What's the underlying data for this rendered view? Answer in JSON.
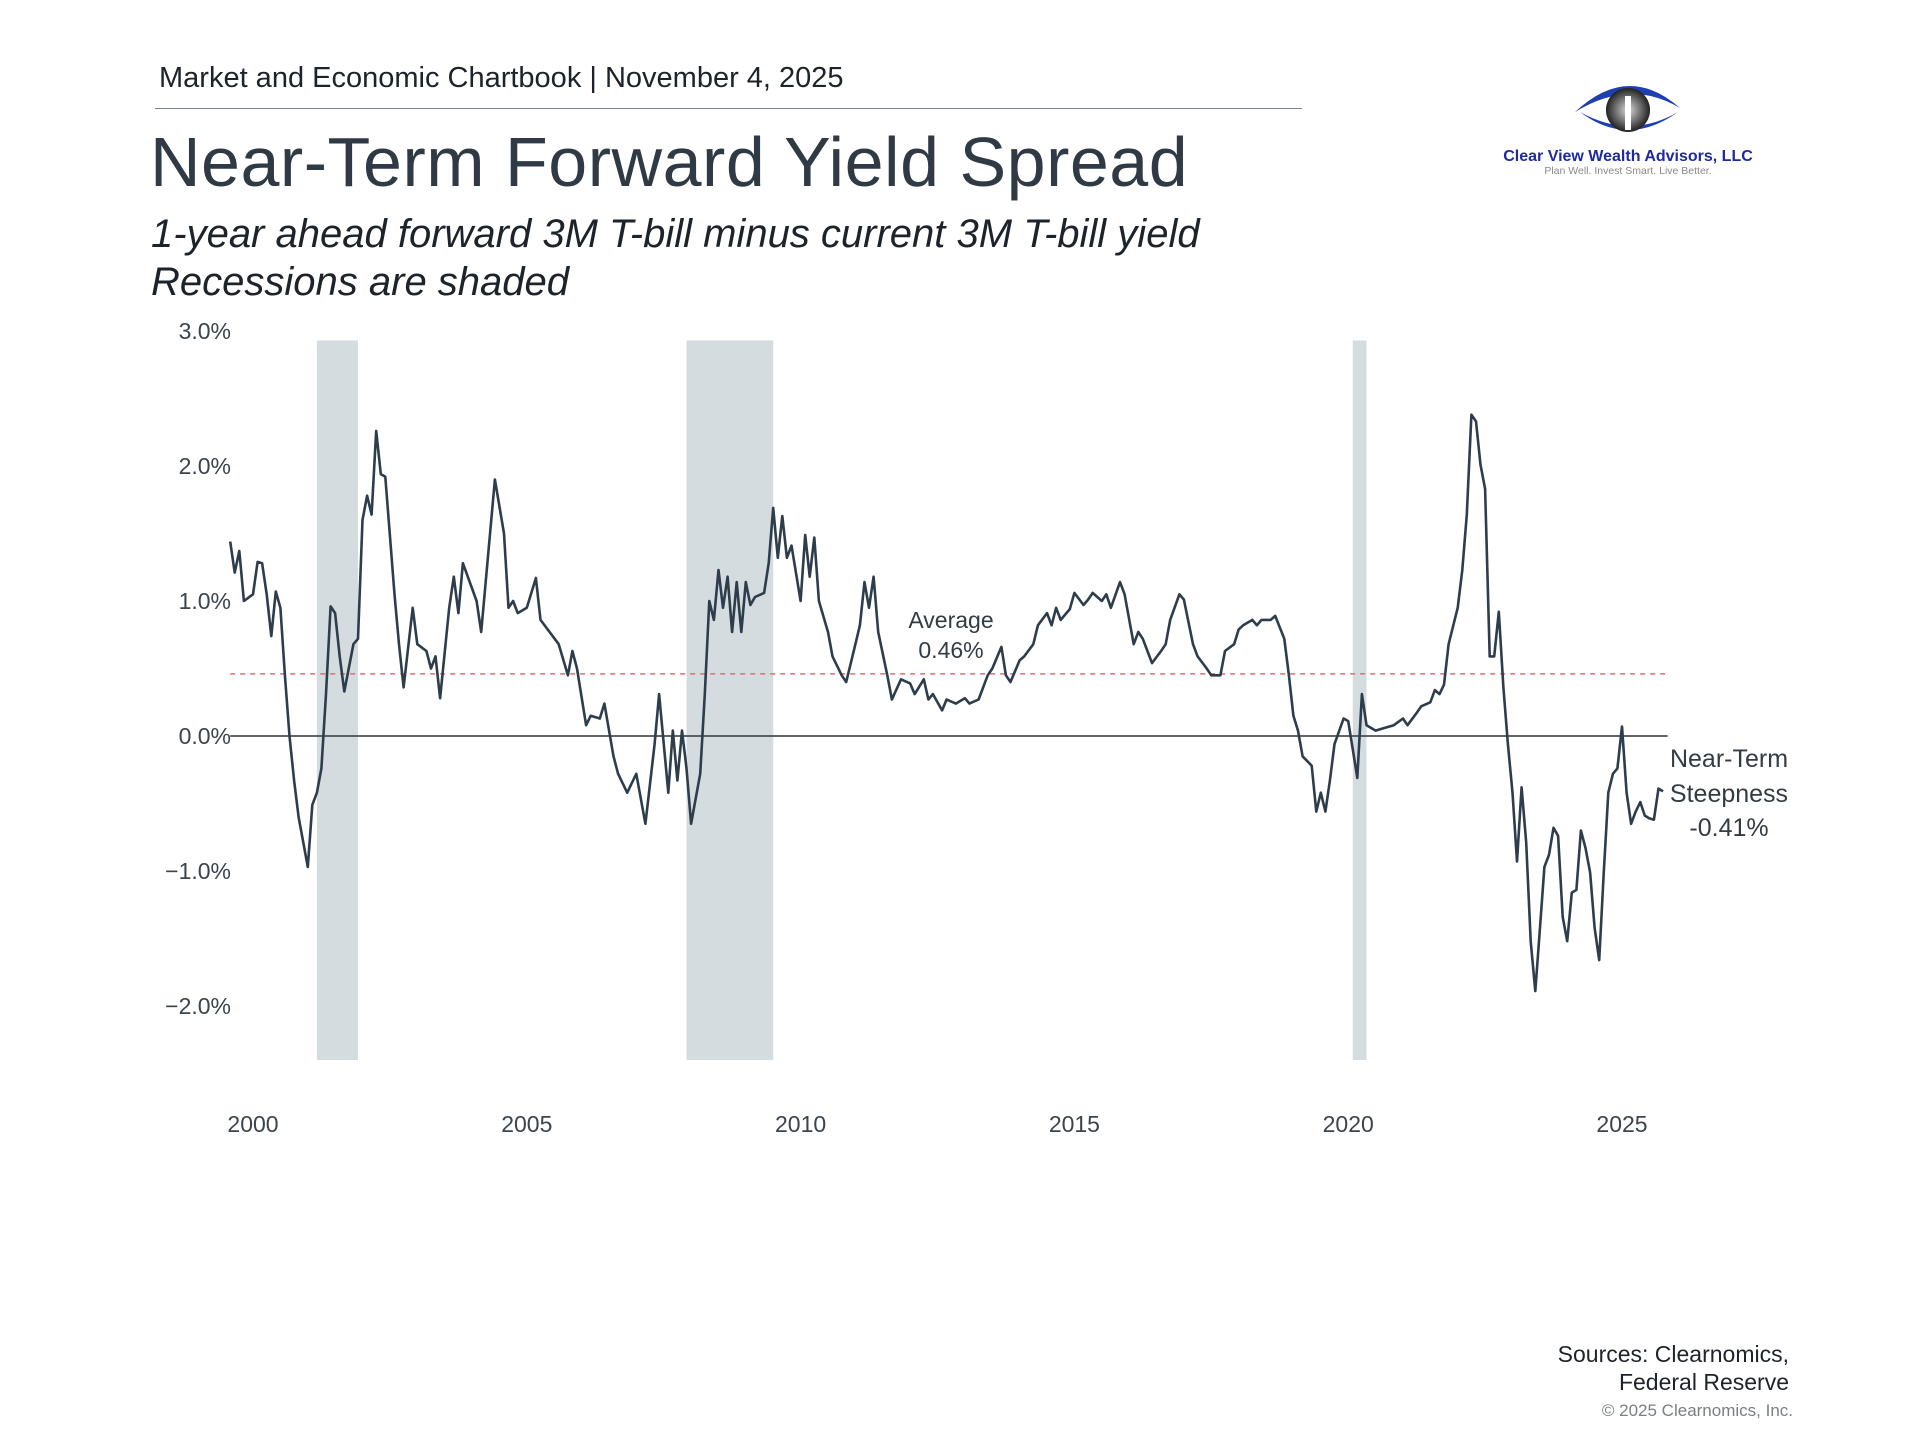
{
  "header": {
    "chartbook": "Market and Economic Chartbook | November 4, 2025",
    "title": "Near-Term Forward Yield Spread",
    "subtitle_1": "1-year ahead forward 3M T-bill minus current 3M T-bill yield",
    "subtitle_2": "Recessions are shaded"
  },
  "logo": {
    "name": "Clear View Wealth Advisors, LLC",
    "tagline": "Plan Well. Invest Smart. Live Better.",
    "color": "#1f2a9e"
  },
  "footer": {
    "sources_1": "Sources: Clearnomics,",
    "sources_2": "Federal Reserve",
    "copyright": "© 2025 Clearnomics, Inc."
  },
  "chart_data": {
    "type": "line",
    "title": "",
    "xlabel": "",
    "ylabel": "",
    "ylim": [
      -2.4,
      3.0
    ],
    "xlim": [
      "1999-08",
      "2025-10"
    ],
    "yticks": [
      {
        "value": 3,
        "label": "3.0%"
      },
      {
        "value": 2,
        "label": "2.0%"
      },
      {
        "value": 1,
        "label": "1.0%"
      },
      {
        "value": 0,
        "label": "0.0%"
      },
      {
        "value": -1,
        "label": "−1.0%"
      },
      {
        "value": -2,
        "label": "−2.0%"
      }
    ],
    "xticks": [
      {
        "value": 2000,
        "label": "2000"
      },
      {
        "value": 2005,
        "label": "2005"
      },
      {
        "value": 2010,
        "label": "2010"
      },
      {
        "value": 2015,
        "label": "2015"
      },
      {
        "value": 2020,
        "label": "2020"
      },
      {
        "value": 2025,
        "label": "2025"
      }
    ],
    "grid": false,
    "line_color": "#2e3d4b",
    "recession_color": "#d5dce0",
    "average_color": "#e06c75",
    "recessions": [
      [
        "2001-03",
        "2001-11"
      ],
      [
        "2007-12",
        "2009-06"
      ],
      [
        "2020-02",
        "2020-04"
      ]
    ],
    "average": {
      "value": 0.46,
      "label_1": "Average",
      "label_2": "0.46%"
    },
    "end_annotation": {
      "line_1": "Near-Term",
      "line_2": "Steepness",
      "line_3": "-0.41%"
    },
    "series": [
      {
        "points": [
          [
            "1999-08",
            1.44
          ],
          [
            "1999-09",
            1.21
          ],
          [
            "1999-10",
            1.37
          ],
          [
            "1999-11",
            1.0
          ],
          [
            "2000-01",
            1.05
          ],
          [
            "2000-02",
            1.29
          ],
          [
            "2000-03",
            1.28
          ],
          [
            "2000-04",
            1.05
          ],
          [
            "2000-05",
            0.74
          ],
          [
            "2000-06",
            1.07
          ],
          [
            "2000-07",
            0.95
          ],
          [
            "2000-08",
            0.45
          ],
          [
            "2000-09",
            0.0
          ],
          [
            "2000-10",
            -0.33
          ],
          [
            "2000-11",
            -0.6
          ],
          [
            "2001-01",
            -0.97
          ],
          [
            "2001-02",
            -0.51
          ],
          [
            "2001-03",
            -0.42
          ],
          [
            "2001-04",
            -0.24
          ],
          [
            "2001-05",
            0.31
          ],
          [
            "2001-06",
            0.96
          ],
          [
            "2001-07",
            0.91
          ],
          [
            "2001-08",
            0.59
          ],
          [
            "2001-09",
            0.33
          ],
          [
            "2001-11",
            0.68
          ],
          [
            "2001-12",
            0.72
          ],
          [
            "2002-01",
            1.6
          ],
          [
            "2002-02",
            1.78
          ],
          [
            "2002-03",
            1.64
          ],
          [
            "2002-04",
            2.26
          ],
          [
            "2002-05",
            1.94
          ],
          [
            "2002-06",
            1.92
          ],
          [
            "2002-08",
            1.05
          ],
          [
            "2002-09",
            0.68
          ],
          [
            "2002-10",
            0.36
          ],
          [
            "2002-12",
            0.95
          ],
          [
            "2003-01",
            0.68
          ],
          [
            "2003-03",
            0.63
          ],
          [
            "2003-04",
            0.5
          ],
          [
            "2003-05",
            0.59
          ],
          [
            "2003-06",
            0.28
          ],
          [
            "2003-08",
            0.95
          ],
          [
            "2003-09",
            1.18
          ],
          [
            "2003-10",
            0.91
          ],
          [
            "2003-11",
            1.28
          ],
          [
            "2004-02",
            1.0
          ],
          [
            "2004-03",
            0.77
          ],
          [
            "2004-06",
            1.9
          ],
          [
            "2004-08",
            1.5
          ],
          [
            "2004-09",
            0.95
          ],
          [
            "2004-10",
            1.0
          ],
          [
            "2004-11",
            0.91
          ],
          [
            "2005-01",
            0.95
          ],
          [
            "2005-03",
            1.17
          ],
          [
            "2005-04",
            0.86
          ],
          [
            "2005-06",
            0.77
          ],
          [
            "2005-08",
            0.68
          ],
          [
            "2005-10",
            0.45
          ],
          [
            "2005-11",
            0.63
          ],
          [
            "2005-12",
            0.5
          ],
          [
            "2006-02",
            0.08
          ],
          [
            "2006-03",
            0.15
          ],
          [
            "2006-05",
            0.13
          ],
          [
            "2006-06",
            0.24
          ],
          [
            "2006-08",
            -0.15
          ],
          [
            "2006-09",
            -0.28
          ],
          [
            "2006-11",
            -0.42
          ],
          [
            "2007-01",
            -0.28
          ],
          [
            "2007-03",
            -0.65
          ],
          [
            "2007-05",
            -0.06
          ],
          [
            "2007-06",
            0.31
          ],
          [
            "2007-08",
            -0.42
          ],
          [
            "2007-09",
            0.04
          ],
          [
            "2007-10",
            -0.33
          ],
          [
            "2007-11",
            0.04
          ],
          [
            "2007-12",
            -0.24
          ],
          [
            "2008-01",
            -0.65
          ],
          [
            "2008-03",
            -0.28
          ],
          [
            "2008-04",
            0.31
          ],
          [
            "2008-05",
            1.0
          ],
          [
            "2008-06",
            0.86
          ],
          [
            "2008-07",
            1.23
          ],
          [
            "2008-08",
            0.95
          ],
          [
            "2008-09",
            1.18
          ],
          [
            "2008-10",
            0.77
          ],
          [
            "2008-11",
            1.14
          ],
          [
            "2008-12",
            0.77
          ],
          [
            "2009-01",
            1.14
          ],
          [
            "2009-02",
            0.97
          ],
          [
            "2009-03",
            1.03
          ],
          [
            "2009-05",
            1.06
          ],
          [
            "2009-06",
            1.28
          ],
          [
            "2009-07",
            1.69
          ],
          [
            "2009-08",
            1.32
          ],
          [
            "2009-09",
            1.63
          ],
          [
            "2009-10",
            1.32
          ],
          [
            "2009-11",
            1.41
          ],
          [
            "2010-01",
            1.0
          ],
          [
            "2010-02",
            1.49
          ],
          [
            "2010-03",
            1.18
          ],
          [
            "2010-04",
            1.47
          ],
          [
            "2010-05",
            1.0
          ],
          [
            "2010-07",
            0.77
          ],
          [
            "2010-08",
            0.59
          ],
          [
            "2010-10",
            0.45
          ],
          [
            "2010-11",
            0.4
          ],
          [
            "2011-01",
            0.68
          ],
          [
            "2011-02",
            0.82
          ],
          [
            "2011-03",
            1.14
          ],
          [
            "2011-04",
            0.95
          ],
          [
            "2011-05",
            1.18
          ],
          [
            "2011-06",
            0.77
          ],
          [
            "2011-08",
            0.45
          ],
          [
            "2011-09",
            0.27
          ],
          [
            "2011-11",
            0.42
          ],
          [
            "2012-01",
            0.39
          ],
          [
            "2012-02",
            0.31
          ],
          [
            "2012-04",
            0.42
          ],
          [
            "2012-05",
            0.27
          ],
          [
            "2012-06",
            0.31
          ],
          [
            "2012-08",
            0.19
          ],
          [
            "2012-09",
            0.27
          ],
          [
            "2012-11",
            0.24
          ],
          [
            "2013-01",
            0.28
          ],
          [
            "2013-02",
            0.24
          ],
          [
            "2013-04",
            0.27
          ],
          [
            "2013-06",
            0.45
          ],
          [
            "2013-07",
            0.5
          ],
          [
            "2013-09",
            0.66
          ],
          [
            "2013-10",
            0.45
          ],
          [
            "2013-11",
            0.4
          ],
          [
            "2014-01",
            0.56
          ],
          [
            "2014-02",
            0.59
          ],
          [
            "2014-04",
            0.68
          ],
          [
            "2014-05",
            0.82
          ],
          [
            "2014-07",
            0.91
          ],
          [
            "2014-08",
            0.82
          ],
          [
            "2014-09",
            0.95
          ],
          [
            "2014-10",
            0.86
          ],
          [
            "2014-12",
            0.94
          ],
          [
            "2015-01",
            1.06
          ],
          [
            "2015-03",
            0.97
          ],
          [
            "2015-04",
            1.01
          ],
          [
            "2015-05",
            1.06
          ],
          [
            "2015-07",
            1.0
          ],
          [
            "2015-08",
            1.05
          ],
          [
            "2015-09",
            0.95
          ],
          [
            "2015-11",
            1.14
          ],
          [
            "2015-12",
            1.05
          ],
          [
            "2016-02",
            0.68
          ],
          [
            "2016-03",
            0.77
          ],
          [
            "2016-04",
            0.72
          ],
          [
            "2016-06",
            0.54
          ],
          [
            "2016-08",
            0.63
          ],
          [
            "2016-09",
            0.68
          ],
          [
            "2016-10",
            0.86
          ],
          [
            "2016-12",
            1.05
          ],
          [
            "2017-01",
            1.01
          ],
          [
            "2017-03",
            0.68
          ],
          [
            "2017-04",
            0.59
          ],
          [
            "2017-06",
            0.5
          ],
          [
            "2017-07",
            0.45
          ],
          [
            "2017-09",
            0.45
          ],
          [
            "2017-10",
            0.63
          ],
          [
            "2017-12",
            0.68
          ],
          [
            "2018-01",
            0.79
          ],
          [
            "2018-02",
            0.82
          ],
          [
            "2018-04",
            0.86
          ],
          [
            "2018-05",
            0.82
          ],
          [
            "2018-06",
            0.86
          ],
          [
            "2018-08",
            0.86
          ],
          [
            "2018-09",
            0.89
          ],
          [
            "2018-11",
            0.72
          ],
          [
            "2018-12",
            0.45
          ],
          [
            "2019-01",
            0.15
          ],
          [
            "2019-02",
            0.04
          ],
          [
            "2019-03",
            -0.15
          ],
          [
            "2019-05",
            -0.22
          ],
          [
            "2019-06",
            -0.56
          ],
          [
            "2019-07",
            -0.42
          ],
          [
            "2019-08",
            -0.56
          ],
          [
            "2019-09",
            -0.33
          ],
          [
            "2019-10",
            -0.06
          ],
          [
            "2019-12",
            0.13
          ],
          [
            "2020-01",
            0.11
          ],
          [
            "2020-02",
            -0.1
          ],
          [
            "2020-03",
            -0.31
          ],
          [
            "2020-04",
            0.31
          ],
          [
            "2020-05",
            0.08
          ],
          [
            "2020-07",
            0.04
          ],
          [
            "2020-09",
            0.06
          ],
          [
            "2020-11",
            0.08
          ],
          [
            "2021-01",
            0.13
          ],
          [
            "2021-02",
            0.08
          ],
          [
            "2021-04",
            0.17
          ],
          [
            "2021-05",
            0.22
          ],
          [
            "2021-07",
            0.25
          ],
          [
            "2021-08",
            0.34
          ],
          [
            "2021-09",
            0.31
          ],
          [
            "2021-10",
            0.38
          ],
          [
            "2021-11",
            0.68
          ],
          [
            "2022-01",
            0.95
          ],
          [
            "2022-02",
            1.23
          ],
          [
            "2022-03",
            1.64
          ],
          [
            "2022-04",
            2.38
          ],
          [
            "2022-05",
            2.33
          ],
          [
            "2022-06",
            2.01
          ],
          [
            "2022-07",
            1.83
          ],
          [
            "2022-08",
            0.59
          ],
          [
            "2022-09",
            0.59
          ],
          [
            "2022-10",
            0.92
          ],
          [
            "2022-11",
            0.36
          ],
          [
            "2022-12",
            -0.06
          ],
          [
            "2023-01",
            -0.42
          ],
          [
            "2023-02",
            -0.93
          ],
          [
            "2023-03",
            -0.38
          ],
          [
            "2023-04",
            -0.79
          ],
          [
            "2023-05",
            -1.52
          ],
          [
            "2023-06",
            -1.89
          ],
          [
            "2023-07",
            -1.43
          ],
          [
            "2023-08",
            -0.97
          ],
          [
            "2023-09",
            -0.88
          ],
          [
            "2023-10",
            -0.68
          ],
          [
            "2023-11",
            -0.74
          ],
          [
            "2023-12",
            -1.34
          ],
          [
            "2024-01",
            -1.52
          ],
          [
            "2024-02",
            -1.16
          ],
          [
            "2024-03",
            -1.14
          ],
          [
            "2024-04",
            -0.7
          ],
          [
            "2024-05",
            -0.83
          ],
          [
            "2024-06",
            -1.01
          ],
          [
            "2024-07",
            -1.42
          ],
          [
            "2024-08",
            -1.66
          ],
          [
            "2024-09",
            -1.02
          ],
          [
            "2024-10",
            -0.42
          ],
          [
            "2024-11",
            -0.28
          ],
          [
            "2024-12",
            -0.24
          ],
          [
            "2025-01",
            0.07
          ],
          [
            "2025-02",
            -0.42
          ],
          [
            "2025-03",
            -0.65
          ],
          [
            "2025-04",
            -0.56
          ],
          [
            "2025-05",
            -0.49
          ],
          [
            "2025-06",
            -0.59
          ],
          [
            "2025-07",
            -0.61
          ],
          [
            "2025-08",
            -0.62
          ],
          [
            "2025-09",
            -0.39
          ],
          [
            "2025-10",
            -0.41
          ]
        ]
      }
    ]
  }
}
